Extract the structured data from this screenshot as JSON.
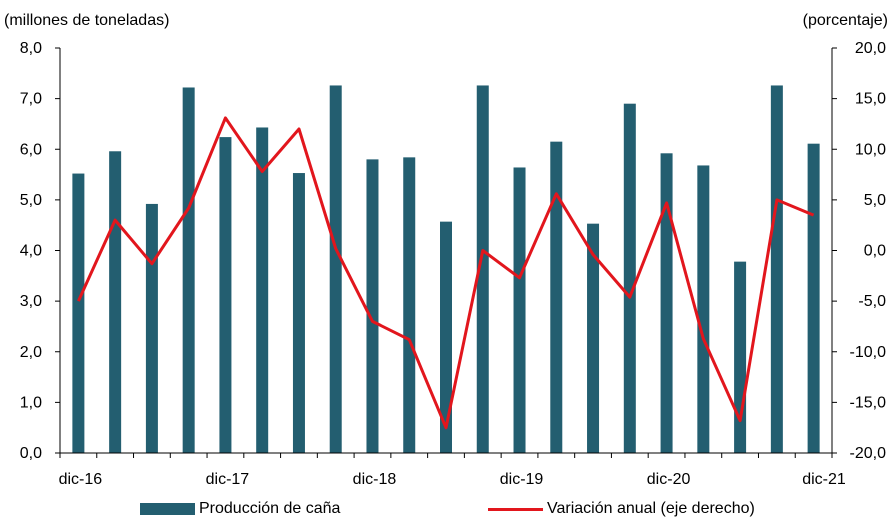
{
  "chart_data": {
    "type": "bar",
    "left_axis_title": "(millones  de toneladas)",
    "right_axis_title": "(porcentaje)",
    "left_ticks": [
      "8,0",
      "7,0",
      "6,0",
      "5,0",
      "4,0",
      "3,0",
      "2,0",
      "1,0",
      "0,0"
    ],
    "right_ticks": [
      "20,0",
      "15,0",
      "10,0",
      "5,0",
      "0,0",
      "-5,0",
      "-10,0",
      "-15,0",
      "-20,0"
    ],
    "x_ticks": [
      "dic-16",
      "dic-17",
      "dic-18",
      "dic-19",
      "dic-20",
      "dic-21"
    ],
    "ylim_left": [
      0,
      8
    ],
    "ylim_right": [
      -20,
      20
    ],
    "colors": {
      "bar": "#235e70",
      "line": "#e2161d"
    },
    "legend": {
      "bar_label": "Producción de caña",
      "line_label": "Variación anual (eje derecho)"
    },
    "series": [
      {
        "name": "Producción de caña",
        "axis": "left",
        "values": [
          5.52,
          5.96,
          4.92,
          7.22,
          6.24,
          6.43,
          5.53,
          7.26,
          5.8,
          5.84,
          4.57,
          7.26,
          5.64,
          6.15,
          4.53,
          6.9,
          5.92,
          5.68,
          3.78,
          7.26,
          6.11
        ]
      },
      {
        "name": "Variación anual (eje derecho)",
        "axis": "right",
        "values": [
          -5.0,
          3.0,
          -1.3,
          4.2,
          13.1,
          7.8,
          12.0,
          0.2,
          -7.0,
          -8.8,
          -17.5,
          0.0,
          -2.7,
          5.6,
          -0.4,
          -4.6,
          4.7,
          -8.7,
          -16.8,
          5.0,
          3.5
        ]
      }
    ]
  }
}
